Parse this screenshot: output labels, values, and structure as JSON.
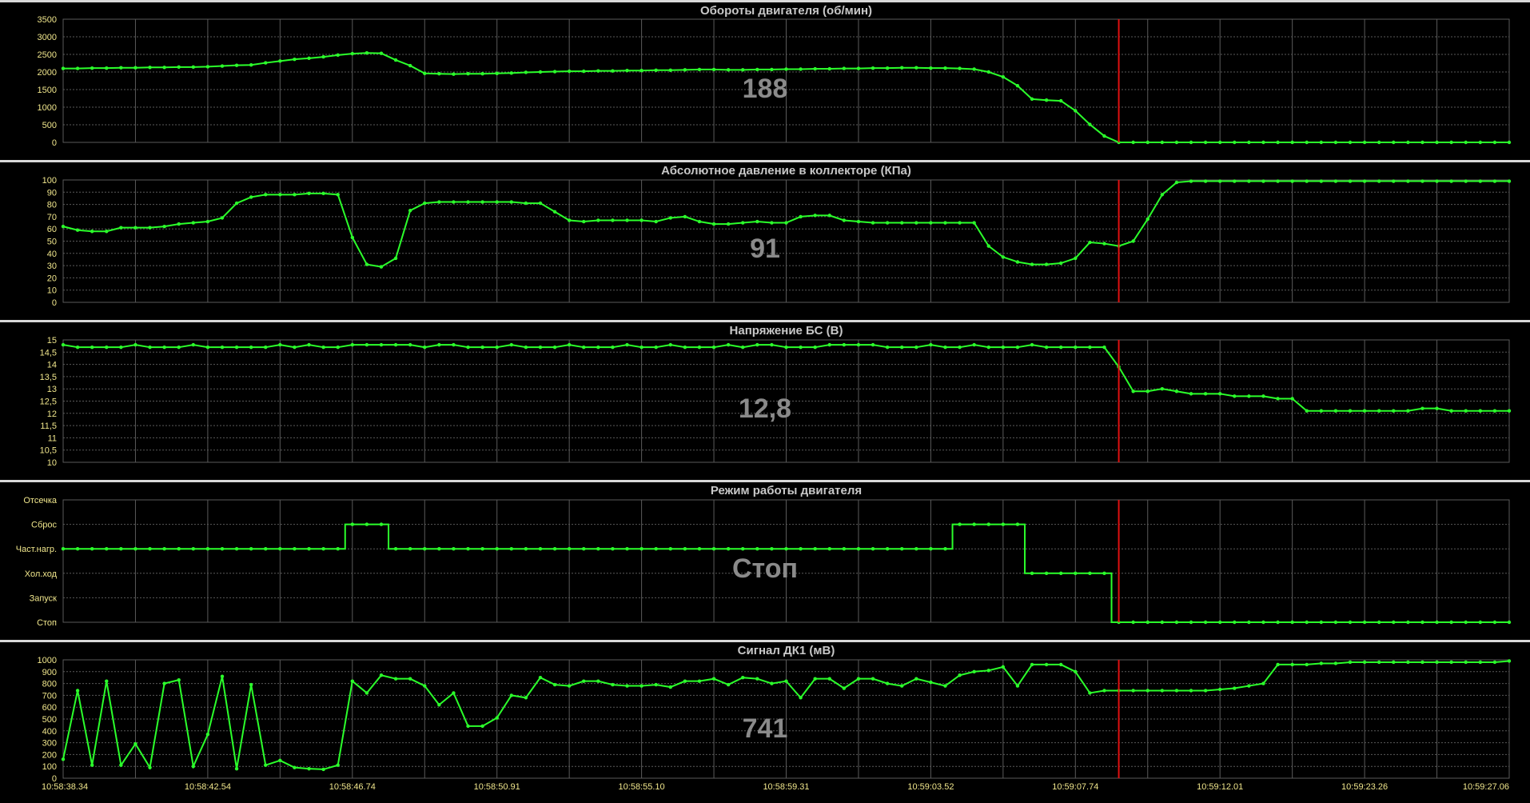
{
  "theme": {
    "background": "#000000",
    "separator": "#d8d8d8",
    "grid": "#5a5a5a",
    "line": "#2bff2b",
    "tick_text": "#f0e68c",
    "title_text": "#c8c8c8",
    "value_text": "#8a8a8a",
    "cursor": "#e01010"
  },
  "chart_data": [
    {
      "type": "line",
      "title": "Обороты двигателя  (об/мин)",
      "current_value": "188",
      "ylim": [
        0,
        3500
      ],
      "y_ticks": [
        0,
        500,
        1000,
        1500,
        2000,
        2500,
        3000,
        3500
      ],
      "y_tick_labels": [
        "0",
        "500",
        "1000",
        "1500",
        "2000",
        "2500",
        "3000",
        "3500"
      ],
      "values": [
        2100,
        2100,
        2110,
        2110,
        2120,
        2120,
        2130,
        2130,
        2140,
        2140,
        2150,
        2170,
        2190,
        2200,
        2260,
        2310,
        2360,
        2390,
        2430,
        2480,
        2520,
        2540,
        2530,
        2340,
        2180,
        1960,
        1950,
        1940,
        1950,
        1950,
        1960,
        1970,
        1990,
        2000,
        2010,
        2020,
        2020,
        2030,
        2030,
        2040,
        2040,
        2050,
        2050,
        2060,
        2070,
        2070,
        2060,
        2060,
        2070,
        2070,
        2080,
        2080,
        2090,
        2090,
        2100,
        2100,
        2110,
        2110,
        2120,
        2120,
        2110,
        2110,
        2100,
        2080,
        2000,
        1860,
        1610,
        1230,
        1200,
        1180,
        900,
        510,
        180,
        0,
        0,
        0,
        0,
        0,
        0,
        0,
        0,
        0,
        0,
        0,
        0,
        0,
        0,
        0,
        0,
        0,
        0,
        0,
        0,
        0,
        0,
        0,
        0,
        0,
        0,
        0,
        0
      ]
    },
    {
      "type": "line",
      "title": "Абсолютное давление в коллекторе  (КПа)",
      "current_value": "91",
      "ylim": [
        0,
        100
      ],
      "y_ticks": [
        0,
        10,
        20,
        30,
        40,
        50,
        60,
        70,
        80,
        90,
        100
      ],
      "y_tick_labels": [
        "0",
        "10",
        "20",
        "30",
        "40",
        "50",
        "60",
        "70",
        "80",
        "90",
        "100"
      ],
      "values": [
        62,
        59,
        58,
        58,
        61,
        61,
        61,
        62,
        64,
        65,
        66,
        69,
        81,
        86,
        88,
        88,
        88,
        89,
        89,
        88,
        53,
        31,
        29,
        36,
        75,
        81,
        82,
        82,
        82,
        82,
        82,
        82,
        81,
        81,
        74,
        67,
        66,
        67,
        67,
        67,
        67,
        66,
        69,
        70,
        66,
        64,
        64,
        65,
        66,
        65,
        65,
        70,
        71,
        71,
        67,
        66,
        65,
        65,
        65,
        65,
        65,
        65,
        65,
        65,
        46,
        37,
        33,
        31,
        31,
        32,
        36,
        49,
        48,
        46,
        50,
        68,
        88,
        98,
        99,
        99,
        99,
        99,
        99,
        99,
        99,
        99,
        99,
        99,
        99,
        99,
        99,
        99,
        99,
        99,
        99,
        99,
        99,
        99,
        99,
        99,
        99
      ]
    },
    {
      "type": "line",
      "title": "Напряжение БС  (В)",
      "current_value": "12,8",
      "ylim": [
        10,
        15
      ],
      "y_ticks": [
        10,
        10.5,
        11,
        11.5,
        12,
        12.5,
        13,
        13.5,
        14,
        14.5,
        15
      ],
      "y_tick_labels": [
        "10",
        "10,5",
        "11",
        "11,5",
        "12",
        "12,5",
        "13",
        "13,5",
        "14",
        "14,5",
        "15"
      ],
      "values": [
        14.8,
        14.7,
        14.7,
        14.7,
        14.7,
        14.8,
        14.7,
        14.7,
        14.7,
        14.8,
        14.7,
        14.7,
        14.7,
        14.7,
        14.7,
        14.8,
        14.7,
        14.8,
        14.7,
        14.7,
        14.8,
        14.8,
        14.8,
        14.8,
        14.8,
        14.7,
        14.8,
        14.8,
        14.7,
        14.7,
        14.7,
        14.8,
        14.7,
        14.7,
        14.7,
        14.8,
        14.7,
        14.7,
        14.7,
        14.8,
        14.7,
        14.7,
        14.8,
        14.7,
        14.7,
        14.7,
        14.8,
        14.7,
        14.8,
        14.8,
        14.7,
        14.7,
        14.7,
        14.8,
        14.8,
        14.8,
        14.8,
        14.7,
        14.7,
        14.7,
        14.8,
        14.7,
        14.7,
        14.8,
        14.7,
        14.7,
        14.7,
        14.8,
        14.7,
        14.7,
        14.7,
        14.7,
        14.7,
        13.9,
        12.9,
        12.9,
        13.0,
        12.9,
        12.8,
        12.8,
        12.8,
        12.7,
        12.7,
        12.7,
        12.6,
        12.6,
        12.1,
        12.1,
        12.1,
        12.1,
        12.1,
        12.1,
        12.1,
        12.1,
        12.2,
        12.2,
        12.1,
        12.1,
        12.1,
        12.1,
        12.1
      ]
    },
    {
      "type": "line",
      "title": "Режим работы двигателя",
      "current_value": "Стоп",
      "ylim": [
        0,
        5
      ],
      "y_ticks": [
        0,
        1,
        2,
        3,
        4,
        5
      ],
      "y_tick_labels": [
        "Стоп",
        "Запуск",
        "Хол.ход",
        "Част.нагр.",
        "Сброс",
        "Отсечка"
      ],
      "step": true,
      "values": [
        3,
        3,
        3,
        3,
        3,
        3,
        3,
        3,
        3,
        3,
        3,
        3,
        3,
        3,
        3,
        3,
        3,
        3,
        3,
        3,
        4,
        4,
        4,
        3,
        3,
        3,
        3,
        3,
        3,
        3,
        3,
        3,
        3,
        3,
        3,
        3,
        3,
        3,
        3,
        3,
        3,
        3,
        3,
        3,
        3,
        3,
        3,
        3,
        3,
        3,
        3,
        3,
        3,
        3,
        3,
        3,
        3,
        3,
        3,
        3,
        3,
        3,
        4,
        4,
        4,
        4,
        4,
        2,
        2,
        2,
        2,
        2,
        2,
        0,
        0,
        0,
        0,
        0,
        0,
        0,
        0,
        0,
        0,
        0,
        0,
        0,
        0,
        0,
        0,
        0,
        0,
        0,
        0,
        0,
        0,
        0,
        0,
        0,
        0,
        0,
        0
      ]
    },
    {
      "type": "line",
      "title": "Сигнал ДК1  (мВ)",
      "current_value": "741",
      "ylim": [
        0,
        1000
      ],
      "y_ticks": [
        0,
        100,
        200,
        300,
        400,
        500,
        600,
        700,
        800,
        900,
        1000
      ],
      "y_tick_labels": [
        "0",
        "100",
        "200",
        "300",
        "400",
        "500",
        "600",
        "700",
        "800",
        "900",
        "1000"
      ],
      "values": [
        160,
        740,
        110,
        820,
        110,
        290,
        90,
        800,
        830,
        100,
        370,
        860,
        80,
        790,
        110,
        150,
        90,
        80,
        75,
        110,
        820,
        720,
        870,
        840,
        840,
        780,
        620,
        720,
        440,
        440,
        510,
        700,
        680,
        850,
        790,
        780,
        820,
        820,
        790,
        780,
        780,
        790,
        770,
        820,
        820,
        840,
        790,
        850,
        840,
        800,
        820,
        680,
        840,
        840,
        760,
        840,
        840,
        800,
        780,
        840,
        810,
        780,
        870,
        900,
        910,
        940,
        780,
        960,
        960,
        960,
        900,
        720,
        740,
        740,
        740,
        740,
        740,
        740,
        740,
        740,
        750,
        760,
        780,
        800,
        960,
        960,
        960,
        970,
        970,
        980,
        980,
        980,
        980,
        980,
        980,
        980,
        980,
        980,
        980,
        980,
        990
      ]
    }
  ],
  "x_axis": {
    "tick_labels": [
      "10:58:38.34",
      "10:58:42.54",
      "10:58:46.74",
      "10:58:50.91",
      "10:58:55.10",
      "10:58:59.31",
      "10:59:03.52",
      "10:59:07.74",
      "10:59:12.01",
      "10:59:23.26",
      "10:59:27.06"
    ]
  }
}
